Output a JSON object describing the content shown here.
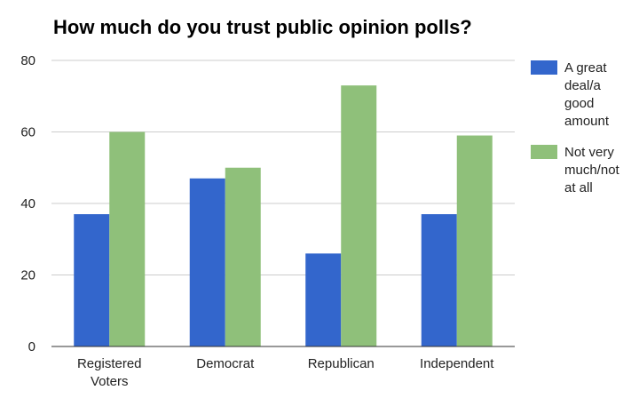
{
  "chart_data": {
    "type": "bar",
    "title": "How much do you trust public opinion polls?",
    "categories": [
      [
        "Registered",
        "Voters"
      ],
      [
        "Democrat"
      ],
      [
        "Republican"
      ],
      [
        "Independent"
      ]
    ],
    "series": [
      {
        "name": [
          "A great",
          "deal/a",
          "good",
          "amount"
        ],
        "values": [
          37,
          47,
          26,
          37
        ],
        "color": "#3366cc"
      },
      {
        "name": [
          "Not very",
          "much/not",
          "at all"
        ],
        "values": [
          60,
          50,
          73,
          59
        ],
        "color": "#8fc07a"
      }
    ],
    "ylim": [
      0,
      80
    ],
    "yticks": [
      0,
      20,
      40,
      60,
      80
    ],
    "grid": true,
    "legend_position": "right"
  }
}
